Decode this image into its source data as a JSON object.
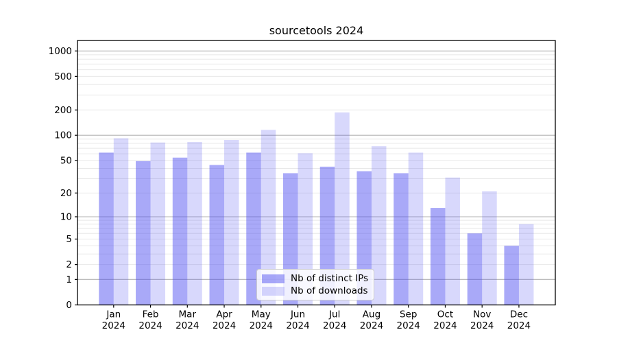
{
  "chart_data": {
    "type": "bar",
    "title": "sourcetools 2024",
    "year_label": "2024",
    "categories": [
      "Jan",
      "Feb",
      "Mar",
      "Apr",
      "May",
      "Jun",
      "Jul",
      "Aug",
      "Sep",
      "Oct",
      "Nov",
      "Dec"
    ],
    "series": [
      {
        "name": "Nb of distinct IPs",
        "values": [
          62,
          49,
          54,
          44,
          62,
          35,
          42,
          37,
          35,
          13,
          6,
          4
        ]
      },
      {
        "name": "Nb of downloads",
        "values": [
          92,
          82,
          83,
          88,
          116,
          61,
          187,
          74,
          62,
          31,
          21,
          8
        ]
      }
    ],
    "yscale": "log1p",
    "yticks": [
      0,
      1,
      2,
      5,
      10,
      20,
      50,
      100,
      200,
      500,
      1000
    ],
    "ylim": [
      0,
      1330
    ],
    "grid": "horizontal, major and minor",
    "legend_position": "lower center"
  },
  "theme": {
    "bar_base_color": "#4848f0",
    "bar_opacity_ips": 0.47,
    "bar_opacity_downloads": 0.21,
    "major_grid_color": "#b3b3b3",
    "minor_grid_color": "#e8e8e8",
    "spine_color": "#000000",
    "text_color": "#000000",
    "background": "#ffffff"
  }
}
